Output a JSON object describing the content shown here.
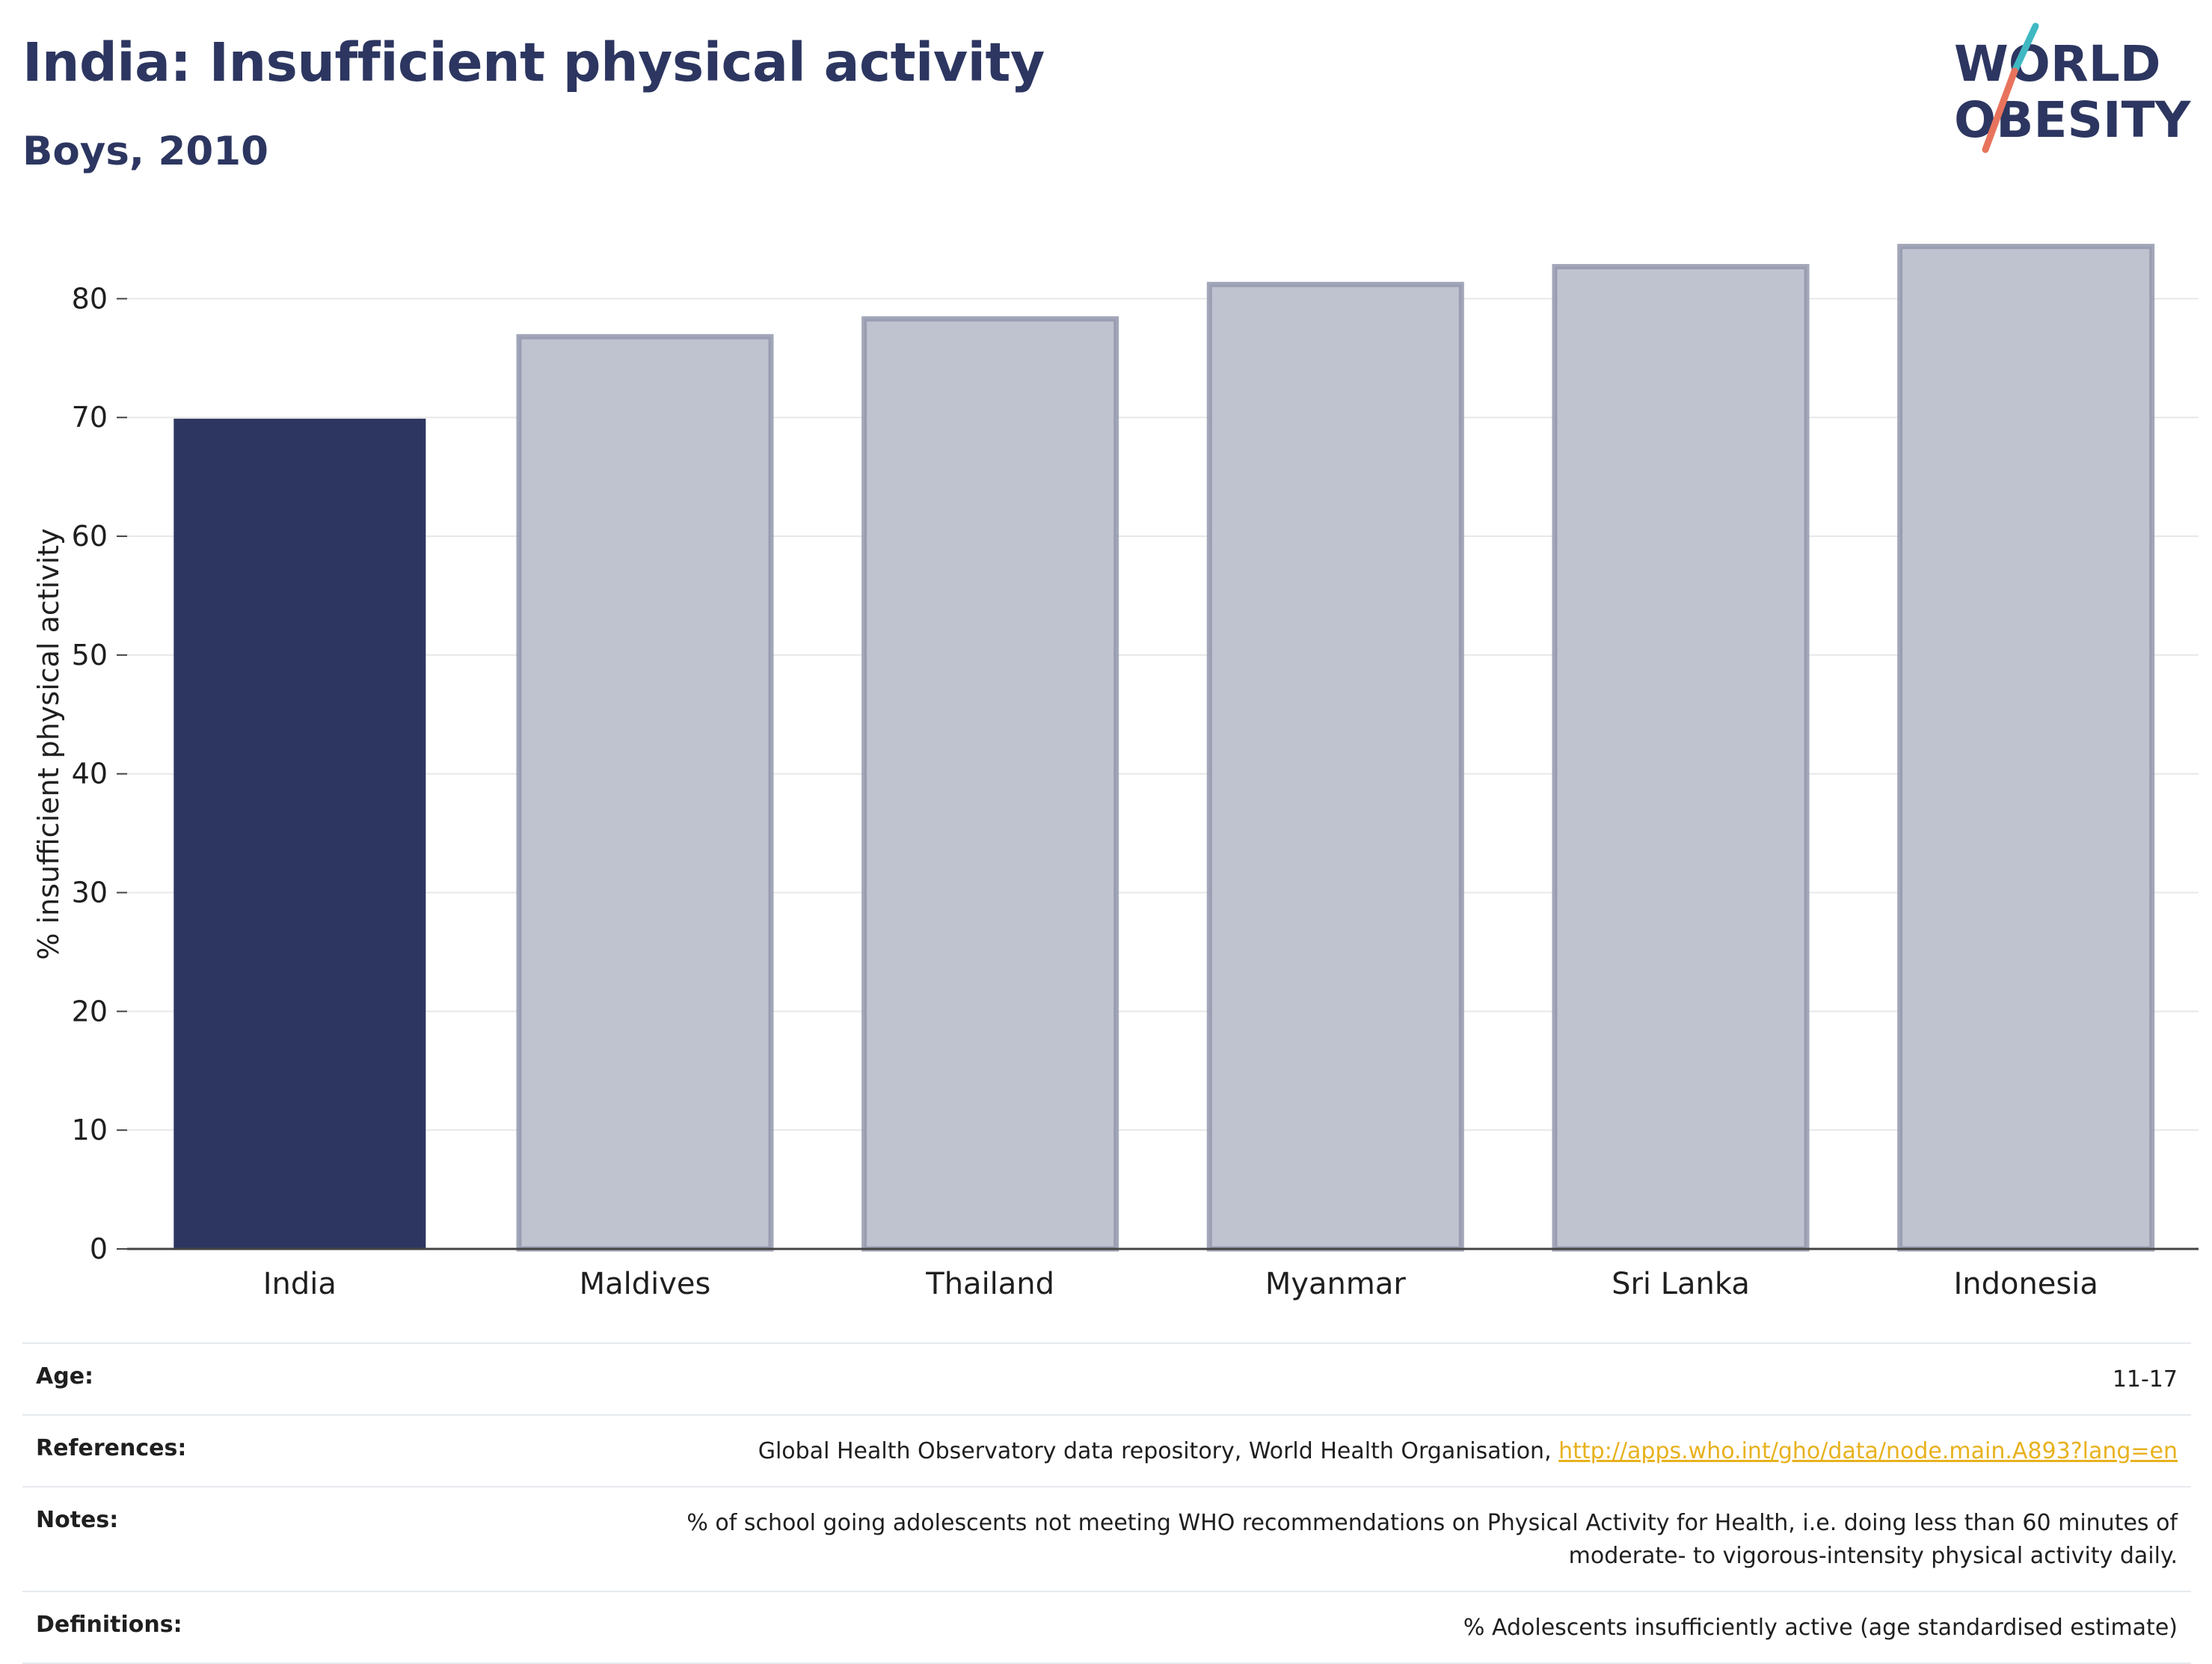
{
  "header": {
    "title": "India: Insufficient physical activity",
    "subtitle": "Boys, 2010"
  },
  "logo": {
    "line1": "WORLD",
    "line2": "OBESITY",
    "colors": {
      "text": "#2c3660",
      "slash_teal": "#3fb8c2",
      "slash_coral": "#e8735d"
    }
  },
  "chart_data": {
    "type": "bar",
    "categories": [
      "India",
      "Maldives",
      "Thailand",
      "Myanmar",
      "Sri Lanka",
      "Indonesia"
    ],
    "values": [
      69.9,
      76.8,
      78.3,
      81.2,
      82.7,
      84.4
    ],
    "highlight": "India",
    "ylabel": "% insufficient physical activity",
    "xlabel": "",
    "ylim": [
      0,
      85
    ],
    "yticks": [
      0,
      10,
      20,
      30,
      40,
      50,
      60,
      70,
      80
    ],
    "grid": true,
    "colors": {
      "highlight": "#2c3660",
      "other_fill": "#bfc3cf",
      "other_stroke": "#9398ad"
    }
  },
  "info": {
    "age": {
      "label": "Age:",
      "value": "11-17"
    },
    "references": {
      "label": "References:",
      "text": "Global Health Observatory data repository, World Health Organisation, ",
      "link": "http://apps.who.int/gho/data/node.main.A893?lang=en"
    },
    "notes": {
      "label": "Notes:",
      "line1": "% of school going adolescents not meeting WHO recommendations on Physical Activity for Health, i.e. doing less than 60 minutes of",
      "line2": "moderate- to vigorous-intensity physical activity daily."
    },
    "definitions": {
      "label": "Definitions:",
      "value": "% Adolescents insufficiently active (age standardised estimate)"
    }
  }
}
